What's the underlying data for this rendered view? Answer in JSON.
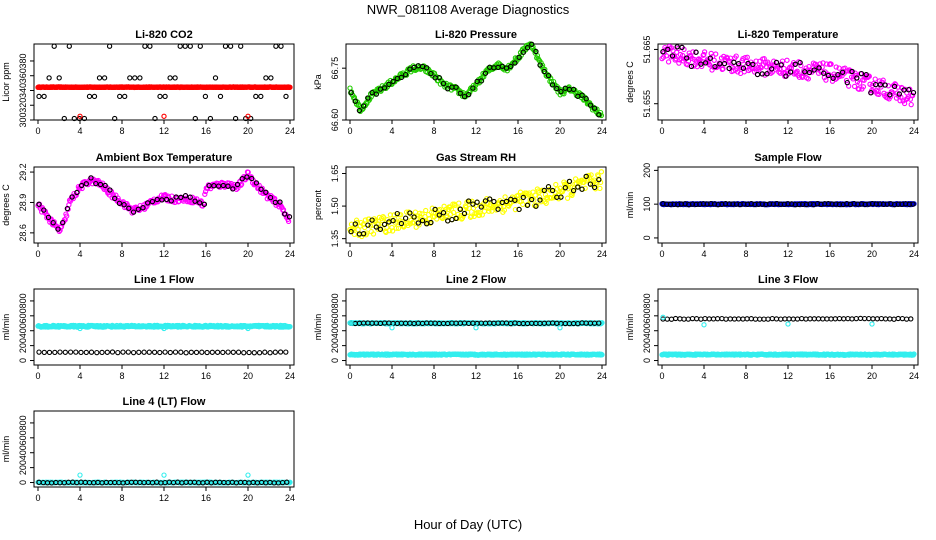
{
  "page": {
    "title": "NWR_081108  Average Diagnostics",
    "x_caption": "Hour of Day (UTC)"
  },
  "colors": {
    "black": "#000000",
    "red": "#ff0000",
    "green": "#22cc00",
    "magenta": "#ff00ff",
    "yellow": "#ffff00",
    "blue": "#0000cc",
    "cyan": "#33eeee"
  },
  "chart_data": [
    {
      "id": "co2",
      "type": "scatter",
      "title": "Li-820 CO2",
      "ylabel": "Licor ppm",
      "xlim": [
        0,
        24
      ],
      "ylim": [
        300,
        403
      ],
      "xticks": [
        "0",
        "4",
        "8",
        "12",
        "16",
        "20",
        "24"
      ],
      "yticks": [
        "300",
        "320",
        "340",
        "360",
        "380"
      ],
      "series": [
        {
          "color": "red",
          "pattern": "line",
          "level": 344.5,
          "noise": 0.4
        },
        {
          "color": "black",
          "pattern": "levels",
          "levels": [
            302,
            332,
            357,
            400
          ],
          "cycle": 8
        },
        {
          "color": "red",
          "pattern": "points",
          "x": [
            4.0,
            12.0,
            20.0
          ],
          "y": [
            305,
            305,
            305
          ]
        }
      ]
    },
    {
      "id": "pressure",
      "type": "scatter",
      "title": "Li-820 Pressure",
      "ylabel": "kPa",
      "xlim": [
        0,
        24
      ],
      "ylim": [
        66.6,
        66.82
      ],
      "xticks": [
        "0",
        "4",
        "8",
        "12",
        "16",
        "20",
        "24"
      ],
      "yticks": [
        "66.60",
        "66.75"
      ],
      "series": [
        {
          "color": "green",
          "pattern": "curve",
          "noise": 0.008,
          "x": [
            0,
            0.5,
            1,
            1.5,
            2,
            3,
            4,
            5,
            6,
            7,
            8,
            9,
            10,
            11,
            12,
            13,
            14,
            15,
            16,
            16.5,
            17,
            17.5,
            18,
            19,
            20,
            21,
            22,
            23,
            24
          ],
          "y": [
            66.69,
            66.66,
            66.63,
            66.65,
            66.67,
            66.69,
            66.71,
            66.73,
            66.75,
            66.75,
            66.73,
            66.7,
            66.69,
            66.67,
            66.7,
            66.74,
            66.76,
            66.75,
            66.78,
            66.8,
            66.82,
            66.81,
            66.77,
            66.72,
            66.68,
            66.69,
            66.67,
            66.64,
            66.61
          ]
        },
        {
          "color": "black",
          "pattern": "sample",
          "of": 0,
          "step": 0.4
        }
      ]
    },
    {
      "id": "licor-temp",
      "type": "scatter",
      "title": "Li-820 Temperature",
      "ylabel": "degrees C",
      "xlim": [
        0,
        24
      ],
      "ylim": [
        51.652,
        51.666
      ],
      "xticks": [
        "0",
        "4",
        "8",
        "12",
        "16",
        "20",
        "24"
      ],
      "yticks": [
        "51.655",
        "51.665"
      ],
      "series": [
        {
          "color": "magenta",
          "pattern": "curve",
          "noise": 0.0016,
          "x": [
            0,
            4,
            8,
            12,
            16,
            20,
            24
          ],
          "y": [
            51.6645,
            51.663,
            51.662,
            51.6615,
            51.6608,
            51.6585,
            51.656
          ]
        },
        {
          "color": "black",
          "pattern": "sample",
          "of": 0,
          "step": 0.45
        }
      ]
    },
    {
      "id": "box-temp",
      "type": "scatter",
      "title": "Ambient Box Temperature",
      "ylabel": "degrees C",
      "xlim": [
        0,
        24
      ],
      "ylim": [
        28.5,
        29.25
      ],
      "xticks": [
        "0",
        "4",
        "8",
        "12",
        "16",
        "20",
        "24"
      ],
      "yticks": [
        "28.6",
        "28.9",
        "29.2"
      ],
      "series": [
        {
          "color": "magenta",
          "pattern": "curve",
          "noise": 0.03,
          "x": [
            0,
            1,
            2,
            2.5,
            3,
            4,
            5,
            6,
            7,
            8,
            9,
            10,
            11,
            12,
            13,
            14,
            15,
            15.8,
            16,
            17,
            18,
            19,
            20,
            21,
            22,
            23,
            24
          ],
          "y": [
            28.88,
            28.75,
            28.62,
            28.7,
            28.9,
            29.05,
            29.12,
            29.08,
            28.98,
            28.9,
            28.82,
            28.85,
            28.92,
            28.95,
            28.93,
            28.94,
            28.92,
            28.88,
            29.05,
            29.07,
            29.08,
            29.05,
            29.18,
            29.05,
            28.95,
            28.88,
            28.72
          ]
        },
        {
          "color": "black",
          "pattern": "sample",
          "of": 0,
          "step": 0.45
        }
      ]
    },
    {
      "id": "rh",
      "type": "scatter",
      "title": "Gas Stream RH",
      "ylabel": "percent",
      "xlim": [
        0,
        24
      ],
      "ylim": [
        1.33,
        1.68
      ],
      "xticks": [
        "0",
        "4",
        "8",
        "12",
        "16",
        "20",
        "24"
      ],
      "yticks": [
        "1.35",
        "1.50",
        "1.65"
      ],
      "series": [
        {
          "color": "yellow",
          "pattern": "curve",
          "noise": 0.04,
          "x": [
            0,
            6,
            12,
            18,
            24
          ],
          "y": [
            1.39,
            1.44,
            1.49,
            1.54,
            1.62
          ]
        },
        {
          "color": "black",
          "pattern": "sample",
          "of": 0,
          "step": 0.4
        }
      ]
    },
    {
      "id": "sample-flow",
      "type": "scatter",
      "title": "Sample Flow",
      "ylabel": "ml/min",
      "xlim": [
        0,
        24
      ],
      "ylim": [
        -15,
        210
      ],
      "xticks": [
        "0",
        "4",
        "8",
        "12",
        "16",
        "20",
        "24"
      ],
      "yticks": [
        "0",
        "100",
        "200"
      ],
      "series": [
        {
          "color": "blue",
          "pattern": "line",
          "level": 100,
          "noise": 1.5
        },
        {
          "color": "black",
          "pattern": "sample",
          "of": 0,
          "step": 0.35
        }
      ]
    },
    {
      "id": "line1",
      "type": "scatter",
      "title": "Line 1 Flow",
      "ylabel": "ml/min",
      "xlim": [
        0,
        24
      ],
      "ylim": [
        -60,
        960
      ],
      "xticks": [
        "0",
        "4",
        "8",
        "12",
        "16",
        "20",
        "24"
      ],
      "yticks": [
        "0",
        "200",
        "400",
        "600",
        "800"
      ],
      "series": [
        {
          "color": "cyan",
          "pattern": "line",
          "level": 460,
          "noise": 12
        },
        {
          "color": "black",
          "pattern": "dots",
          "level": 110,
          "step": 0.5
        },
        {
          "color": "cyan",
          "pattern": "points",
          "x": [
            4.0,
            12.0,
            20.0
          ],
          "y": [
            430,
            430,
            430
          ]
        }
      ]
    },
    {
      "id": "line2",
      "type": "scatter",
      "title": "Line 2 Flow",
      "ylabel": "ml/min",
      "xlim": [
        0,
        24
      ],
      "ylim": [
        -60,
        960
      ],
      "xticks": [
        "0",
        "4",
        "8",
        "12",
        "16",
        "20",
        "24"
      ],
      "yticks": [
        "0",
        "200",
        "400",
        "600",
        "800"
      ],
      "series": [
        {
          "color": "cyan",
          "pattern": "line",
          "level": 80,
          "noise": 8
        },
        {
          "color": "cyan",
          "pattern": "line",
          "level": 500,
          "noise": 8
        },
        {
          "color": "black",
          "pattern": "dots",
          "level": 500,
          "step": 0.4
        },
        {
          "color": "cyan",
          "pattern": "points",
          "x": [
            0.1,
            4.0,
            12.0,
            20.0
          ],
          "y": [
            500,
            440,
            440,
            440
          ]
        }
      ]
    },
    {
      "id": "line3",
      "type": "scatter",
      "title": "Line 3 Flow",
      "ylabel": "ml/min",
      "xlim": [
        0,
        24
      ],
      "ylim": [
        -60,
        960
      ],
      "xticks": [
        "0",
        "4",
        "8",
        "12",
        "16",
        "20",
        "24"
      ],
      "yticks": [
        "0",
        "200",
        "400",
        "600",
        "800"
      ],
      "series": [
        {
          "color": "cyan",
          "pattern": "line",
          "level": 80,
          "noise": 8
        },
        {
          "color": "black",
          "pattern": "dots",
          "level": 560,
          "step": 0.4
        },
        {
          "color": "cyan",
          "pattern": "points",
          "x": [
            0.1,
            4.0,
            12.0,
            20.0
          ],
          "y": [
            580,
            480,
            490,
            490
          ]
        }
      ]
    },
    {
      "id": "line4",
      "type": "scatter",
      "title": "Line 4 (LT) Flow",
      "ylabel": "ml/min",
      "xlim": [
        0,
        24
      ],
      "ylim": [
        -60,
        960
      ],
      "xticks": [
        "0",
        "4",
        "8",
        "12",
        "16",
        "20",
        "24"
      ],
      "yticks": [
        "0",
        "200",
        "400",
        "600",
        "800"
      ],
      "series": [
        {
          "color": "cyan",
          "pattern": "line",
          "level": 0,
          "noise": 4
        },
        {
          "color": "black",
          "pattern": "dots",
          "level": 0,
          "step": 0.4
        },
        {
          "color": "cyan",
          "pattern": "points",
          "x": [
            4.0,
            12.0,
            20.0
          ],
          "y": [
            100,
            100,
            100
          ]
        }
      ]
    }
  ]
}
